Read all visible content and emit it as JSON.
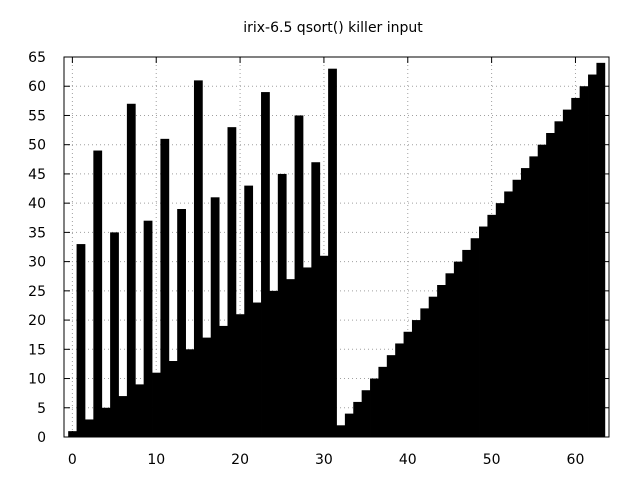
{
  "chart_data": {
    "type": "bar",
    "title": "irix-6.5 qsort() killer input",
    "xlabel": "",
    "ylabel": "",
    "xlim": [
      -1,
      64
    ],
    "ylim": [
      0,
      65
    ],
    "x_ticks": [
      0,
      10,
      20,
      30,
      40,
      50,
      60
    ],
    "y_ticks": [
      0,
      5,
      10,
      15,
      20,
      25,
      30,
      35,
      40,
      45,
      50,
      55,
      60,
      65
    ],
    "grid": true,
    "bar_color": "#000000",
    "x": [
      0,
      1,
      2,
      3,
      4,
      5,
      6,
      7,
      8,
      9,
      10,
      11,
      12,
      13,
      14,
      15,
      16,
      17,
      18,
      19,
      20,
      21,
      22,
      23,
      24,
      25,
      26,
      27,
      28,
      29,
      30,
      31,
      32,
      33,
      34,
      35,
      36,
      37,
      38,
      39,
      40,
      41,
      42,
      43,
      44,
      45,
      46,
      47,
      48,
      49,
      50,
      51,
      52,
      53,
      54,
      55,
      56,
      57,
      58,
      59,
      60,
      61,
      62,
      63
    ],
    "values": [
      1,
      33,
      3,
      49,
      5,
      35,
      7,
      57,
      9,
      37,
      11,
      51,
      13,
      39,
      15,
      61,
      17,
      41,
      19,
      53,
      21,
      43,
      23,
      59,
      25,
      45,
      27,
      55,
      29,
      47,
      31,
      63,
      2,
      4,
      6,
      8,
      10,
      12,
      14,
      16,
      18,
      20,
      22,
      24,
      26,
      28,
      30,
      32,
      34,
      36,
      38,
      40,
      42,
      44,
      46,
      48,
      50,
      52,
      54,
      56,
      58,
      60,
      62,
      64
    ]
  }
}
